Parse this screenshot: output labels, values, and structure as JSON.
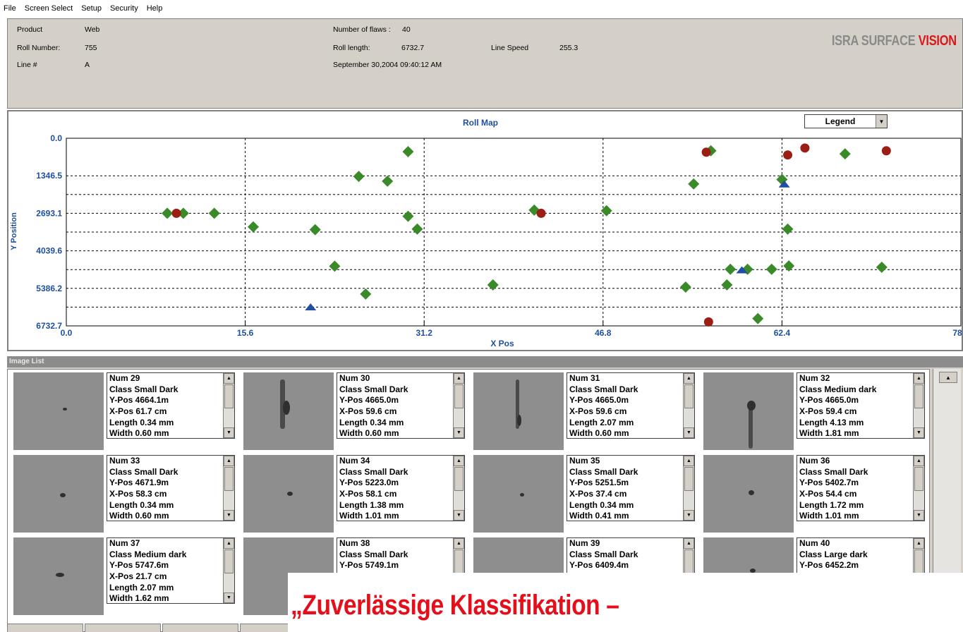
{
  "menu": [
    "File",
    "Screen Select",
    "Setup",
    "Security",
    "Help"
  ],
  "header": {
    "product_label": "Product",
    "product_value": "Web",
    "roll_number_label": "Roll Number:",
    "roll_number_value": "755",
    "line_label": "Line #",
    "line_value": "A",
    "flaws_label": "Number of flaws :",
    "flaws_value": "40",
    "roll_length_label": "Roll length:",
    "roll_length_value": "6732.7",
    "line_speed_label": "Line Speed",
    "line_speed_value": "255.3",
    "timestamp": "September 30,2004  09:40:12 AM",
    "brand_part1": "ISRA SURFACE ",
    "brand_part2": "VISION",
    "brand_colors": {
      "gray": "#8a8a8a",
      "red": "#d8181c"
    }
  },
  "legend_dropdown": {
    "selected": "Legend",
    "icon": "chevron-down-icon"
  },
  "chart_data": {
    "type": "scatter",
    "title": "Roll Map",
    "xlabel": "X Pos",
    "ylabel": "Y Position",
    "xlim": [
      0.0,
      78.0
    ],
    "ylim": [
      0.0,
      6732.7
    ],
    "y_inverted": true,
    "x_ticks": [
      "0.0",
      "15.6",
      "31.2",
      "46.8",
      "62.4",
      "78.0"
    ],
    "y_ticks": [
      "0.0",
      "1346.5",
      "2693.1",
      "4039.6",
      "5386.2",
      "6732.7"
    ],
    "grid": true,
    "series": [
      {
        "marker": "diamond",
        "color": "#3a8a2a",
        "points": [
          [
            8.8,
            2693
          ],
          [
            10.2,
            2693
          ],
          [
            12.9,
            2693
          ],
          [
            16.3,
            3180
          ],
          [
            21.7,
            3280
          ],
          [
            23.4,
            4590
          ],
          [
            25.5,
            1370
          ],
          [
            26.1,
            5590
          ],
          [
            28.0,
            1540
          ],
          [
            29.8,
            480
          ],
          [
            29.8,
            2800
          ],
          [
            30.6,
            3260
          ],
          [
            37.2,
            5260
          ],
          [
            40.8,
            2580
          ],
          [
            47.1,
            2600
          ],
          [
            54.0,
            5340
          ],
          [
            54.7,
            1640
          ],
          [
            56.2,
            450
          ],
          [
            57.6,
            5260
          ],
          [
            57.9,
            4700
          ],
          [
            59.4,
            4700
          ],
          [
            60.3,
            6470
          ],
          [
            61.5,
            4700
          ],
          [
            62.4,
            1480
          ],
          [
            62.9,
            3260
          ],
          [
            63.0,
            4580
          ],
          [
            67.9,
            560
          ],
          [
            71.1,
            4630
          ]
        ]
      },
      {
        "marker": "circle",
        "color": "#9a1e14",
        "points": [
          [
            9.6,
            2693
          ],
          [
            41.4,
            2693
          ],
          [
            55.8,
            500
          ],
          [
            56.0,
            6590
          ],
          [
            62.9,
            600
          ],
          [
            64.4,
            350
          ],
          [
            71.5,
            450
          ]
        ]
      },
      {
        "marker": "triangle",
        "color": "#1f4fa0",
        "points": [
          [
            21.3,
            6050
          ],
          [
            58.9,
            4720
          ],
          [
            62.6,
            1640
          ]
        ]
      }
    ]
  },
  "image_list": {
    "title": "Image List",
    "items": [
      {
        "num": "Num 29",
        "cls": "Class Small Dark",
        "ypos": "Y-Pos 4664.1m",
        "xpos": "X-Pos 61.7 cm",
        "length": "Length 0.34 mm",
        "width": "Width 0.60 mm"
      },
      {
        "num": "Num 30",
        "cls": "Class Small Dark",
        "ypos": "Y-Pos 4665.0m",
        "xpos": "X-Pos 59.6 cm",
        "length": "Length 0.34 mm",
        "width": "Width 0.60 mm"
      },
      {
        "num": "Num 31",
        "cls": "Class Small Dark",
        "ypos": "Y-Pos 4665.0m",
        "xpos": "X-Pos 59.6 cm",
        "length": "Length 2.07 mm",
        "width": "Width 0.60 mm"
      },
      {
        "num": "Num 32",
        "cls": "Class Medium dark",
        "ypos": "Y-Pos 4665.0m",
        "xpos": "X-Pos 59.4 cm",
        "length": "Length 4.13 mm",
        "width": "Width 1.81 mm"
      },
      {
        "num": "Num 33",
        "cls": "Class Small Dark",
        "ypos": "Y-Pos 4671.9m",
        "xpos": "X-Pos 58.3 cm",
        "length": "Length 0.34 mm",
        "width": "Width 0.60 mm"
      },
      {
        "num": "Num 34",
        "cls": "Class Small Dark",
        "ypos": "Y-Pos 5223.0m",
        "xpos": "X-Pos 58.1 cm",
        "length": "Length 1.38 mm",
        "width": "Width 1.01 mm"
      },
      {
        "num": "Num 35",
        "cls": "Class Small Dark",
        "ypos": "Y-Pos 5251.5m",
        "xpos": "X-Pos 37.4 cm",
        "length": "Length 0.34 mm",
        "width": "Width 0.41 mm"
      },
      {
        "num": "Num 36",
        "cls": "Class Small Dark",
        "ypos": "Y-Pos 5402.7m",
        "xpos": "X-Pos 54.4 cm",
        "length": "Length 1.72 mm",
        "width": "Width 1.01 mm"
      },
      {
        "num": "Num 37",
        "cls": "Class Medium dark",
        "ypos": "Y-Pos 5747.6m",
        "xpos": "X-Pos 21.7 cm",
        "length": "Length 2.07 mm",
        "width": "Width 1.62 mm"
      },
      {
        "num": "Num 38",
        "cls": "Class Small Dark",
        "ypos": "Y-Pos 5749.1m",
        "xpos": "",
        "length": "",
        "width": ""
      },
      {
        "num": "Num 39",
        "cls": "Class Small Dark",
        "ypos": "Y-Pos 6409.4m",
        "xpos": "",
        "length": "",
        "width": ""
      },
      {
        "num": "Num 40",
        "cls": "Class Large dark",
        "ypos": "Y-Pos 6452.2m",
        "xpos": "",
        "length": "",
        "width": ""
      }
    ]
  },
  "overlay_caption": "„Zuverlässige Klassifikation –",
  "overlay_color": "#e3101c"
}
